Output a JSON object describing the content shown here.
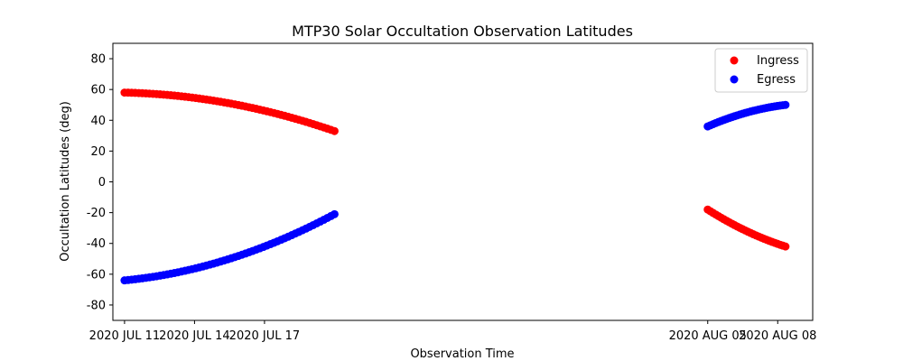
{
  "chart_data": {
    "type": "scatter",
    "title": "MTP30 Solar Occultation Observation Latitudes",
    "xlabel": "Observation Time",
    "ylabel": "Occultation Latitudes (deg)",
    "ylim": [
      -90,
      90
    ],
    "xlim": [
      "2020-07-10T12:00",
      "2020-08-09T12:00"
    ],
    "yticks": [
      -80,
      -60,
      -40,
      -20,
      0,
      20,
      40,
      60,
      80
    ],
    "xticks": [
      {
        "date": "2020-07-11",
        "label": "2020 JUL 11"
      },
      {
        "date": "2020-07-14",
        "label": "2020 JUL 14"
      },
      {
        "date": "2020-07-17",
        "label": "2020 JUL 17"
      },
      {
        "date": "2020-08-05",
        "label": "2020 AUG 05"
      },
      {
        "date": "2020-08-08",
        "label": "2020 AUG 08"
      }
    ],
    "legend_position": "top-right",
    "grid": false,
    "series": [
      {
        "name": "Ingress",
        "color": "#ff0000",
        "segments": [
          {
            "x_start": "2020-07-11T00:00",
            "x_end": "2020-07-20T00:00",
            "y_start": 58,
            "y_end": 33,
            "y_mid": 51,
            "count": 60
          },
          {
            "x_start": "2020-08-05T00:00",
            "x_end": "2020-08-08T08:00",
            "y_start": -18,
            "y_end": -42,
            "y_mid": -32,
            "count": 30
          }
        ]
      },
      {
        "name": "Egress",
        "color": "#0000ff",
        "segments": [
          {
            "x_start": "2020-07-11T00:00",
            "x_end": "2020-07-20T00:00",
            "y_start": -64,
            "y_end": -21,
            "y_mid": -50,
            "count": 60
          },
          {
            "x_start": "2020-08-05T00:00",
            "x_end": "2020-08-08T08:00",
            "y_start": 36,
            "y_end": 50,
            "y_mid": 45,
            "count": 30
          }
        ]
      }
    ]
  }
}
